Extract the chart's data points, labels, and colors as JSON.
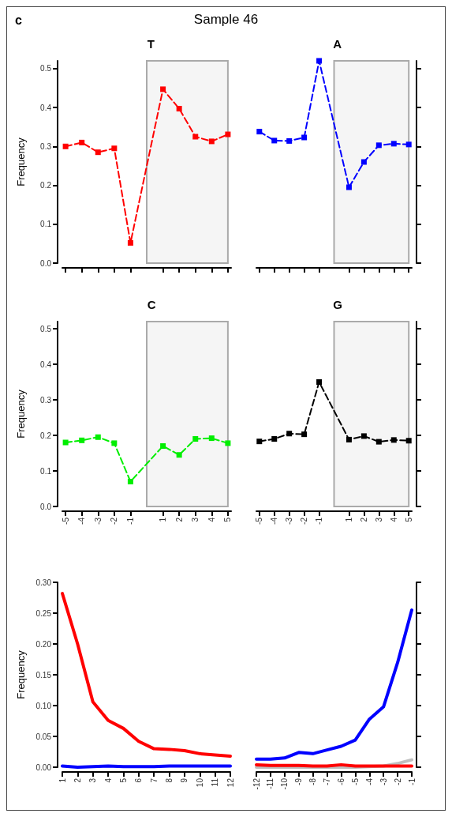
{
  "chart_data": [
    {
      "type": "line",
      "title": "T",
      "ylabel": "Frequency",
      "annotations": [
        "c",
        "Sample 46"
      ],
      "x": [
        -5,
        -4,
        -3,
        -2,
        -1,
        1,
        2,
        3,
        4,
        5
      ],
      "xlim": [
        -5.2,
        5.2
      ],
      "xticks": [
        -5,
        -4,
        -3,
        -2,
        -1,
        1,
        2,
        3,
        4,
        5
      ],
      "ylim": [
        0,
        0.52
      ],
      "yticks": [
        {
          "value": 0,
          "label": "0.0"
        },
        {
          "value": 0.1,
          "label": "0.1"
        },
        {
          "value": 0.2,
          "label": "0.2"
        },
        {
          "value": 0.3,
          "label": "0.3"
        },
        {
          "value": 0.4,
          "label": "0.4"
        },
        {
          "value": 0.5,
          "label": "0.5"
        }
      ],
      "tick_labels": "y",
      "marker": "square",
      "line_style": "dashed",
      "series": [
        {
          "color": "#ff0000",
          "values": [
            0.3,
            0.31,
            0.285,
            0.295,
            0.052,
            0.447,
            0.397,
            0.325,
            0.313,
            0.331
          ]
        }
      ],
      "bands": [
        {
          "axis": "x",
          "from": 0,
          "to": 5,
          "color": "#aaaaaa"
        }
      ]
    },
    {
      "type": "line",
      "title": "A",
      "x": [
        -5,
        -4,
        -3,
        -2,
        -1,
        1,
        2,
        3,
        4,
        5
      ],
      "xlim": [
        -5.2,
        5.2
      ],
      "xticks": [
        -5,
        -4,
        -3,
        -2,
        -1,
        1,
        2,
        3,
        4,
        5
      ],
      "y2lim": [
        0,
        0.52
      ],
      "y2ticks": [
        0,
        0.1,
        0.2,
        0.3,
        0.4,
        0.5
      ],
      "tick_labels": false,
      "marker": "square",
      "line_style": "dashed",
      "series": [
        {
          "color": "#0000ff",
          "axis": "y2",
          "values": [
            0.338,
            0.315,
            0.314,
            0.323,
            0.52,
            0.195,
            0.26,
            0.303,
            0.307,
            0.305
          ]
        }
      ],
      "bands": [
        {
          "axis": "x",
          "from": 0,
          "to": 5,
          "color": "#aaaaaa"
        }
      ]
    },
    {
      "type": "line",
      "title": "C",
      "ylabel": "Frequency",
      "x": [
        -5,
        -4,
        -3,
        -2,
        -1,
        1,
        2,
        3,
        4,
        5
      ],
      "xlim": [
        -5.2,
        5.2
      ],
      "xticks": [
        -5,
        -4,
        -3,
        -2,
        -1,
        1,
        2,
        3,
        4,
        5
      ],
      "ylim": [
        0,
        0.52
      ],
      "yticks": [
        {
          "value": 0,
          "label": "0.0"
        },
        {
          "value": 0.1,
          "label": "0.1"
        },
        {
          "value": 0.2,
          "label": "0.2"
        },
        {
          "value": 0.3,
          "label": "0.3"
        },
        {
          "value": 0.4,
          "label": "0.4"
        },
        {
          "value": 0.5,
          "label": "0.5"
        }
      ],
      "marker": "square",
      "line_style": "dashed",
      "series": [
        {
          "color": "#00ee00",
          "values": [
            0.18,
            0.186,
            0.195,
            0.178,
            0.07,
            0.17,
            0.145,
            0.19,
            0.192,
            0.178
          ]
        }
      ],
      "bands": [
        {
          "axis": "x",
          "from": 0,
          "to": 5,
          "color": "#aaaaaa"
        }
      ]
    },
    {
      "type": "line",
      "title": "G",
      "x": [
        -5,
        -4,
        -3,
        -2,
        -1,
        1,
        2,
        3,
        4,
        5
      ],
      "xlim": [
        -5.2,
        5.2
      ],
      "xticks": [
        -5,
        -4,
        -3,
        -2,
        -1,
        1,
        2,
        3,
        4,
        5
      ],
      "y2lim": [
        0,
        0.52
      ],
      "y2ticks": [
        0,
        0.1,
        0.2,
        0.3,
        0.4,
        0.5
      ],
      "tick_labels": "x",
      "marker": "square",
      "line_style": "dashed",
      "series": [
        {
          "color": "#000000",
          "axis": "y2",
          "values": [
            0.183,
            0.19,
            0.205,
            0.203,
            0.35,
            0.188,
            0.198,
            0.182,
            0.187,
            0.185
          ]
        }
      ],
      "bands": [
        {
          "axis": "x",
          "from": 0,
          "to": 5,
          "color": "#aaaaaa"
        }
      ]
    },
    {
      "type": "line",
      "ylabel": "Frequency",
      "x": [
        1,
        2,
        3,
        4,
        5,
        6,
        7,
        8,
        9,
        10,
        11,
        12
      ],
      "xlim": [
        1,
        12
      ],
      "xticks": [
        1,
        2,
        3,
        4,
        5,
        6,
        7,
        8,
        9,
        10,
        11,
        12
      ],
      "ylim": [
        0,
        0.3
      ],
      "yticks": [
        {
          "value": 0,
          "label": "0.00"
        },
        {
          "value": 0.05,
          "label": "0.05"
        },
        {
          "value": 0.1,
          "label": "0.10"
        },
        {
          "value": 0.15,
          "label": "0.15"
        },
        {
          "value": 0.2,
          "label": "0.20"
        },
        {
          "value": 0.25,
          "label": "0.25"
        },
        {
          "value": 0.3,
          "label": "0.30"
        }
      ],
      "marker": "none",
      "line_style": "solid",
      "series": [
        {
          "color": "#0000ff",
          "values": [
            0.002,
            0.0,
            0.001,
            0.002,
            0.001,
            0.001,
            0.001,
            0.002,
            0.002,
            0.002,
            0.002,
            0.002
          ]
        },
        {
          "color": "#ff0000",
          "values": [
            0.282,
            0.2,
            0.106,
            0.076,
            0.063,
            0.042,
            0.03,
            0.029,
            0.027,
            0.022,
            0.02,
            0.018
          ]
        }
      ]
    },
    {
      "type": "line",
      "x": [
        -12,
        -11,
        -10,
        -9,
        -8,
        -7,
        -6,
        -5,
        -4,
        -3,
        -2,
        -1
      ],
      "xlim": [
        -12,
        -1
      ],
      "xticks": [
        -12,
        -11,
        -10,
        -9,
        -8,
        -7,
        -6,
        -5,
        -4,
        -3,
        -2,
        -1
      ],
      "y2lim": [
        0,
        0.3
      ],
      "y2ticks": [
        0,
        0.05,
        0.1,
        0.15,
        0.2,
        0.25,
        0.3
      ],
      "tick_labels": "x",
      "marker": "none",
      "line_style": "solid",
      "series": [
        {
          "color": "#c0c0c0",
          "axis": "y2",
          "values": [
            0,
            0,
            0,
            0,
            0,
            0,
            0,
            0,
            0.001,
            0.002,
            0.006,
            0.012
          ]
        },
        {
          "color": "#ff0000",
          "axis": "y2",
          "values": [
            0.004,
            0.003,
            0.003,
            0.003,
            0.002,
            0.002,
            0.004,
            0.002,
            0.002,
            0.002,
            0.002,
            0.002
          ]
        },
        {
          "color": "#0000ff",
          "axis": "y2",
          "values": [
            0.013,
            0.013,
            0.015,
            0.024,
            0.022,
            0.028,
            0.034,
            0.044,
            0.078,
            0.098,
            0.17,
            0.255
          ]
        }
      ]
    }
  ]
}
